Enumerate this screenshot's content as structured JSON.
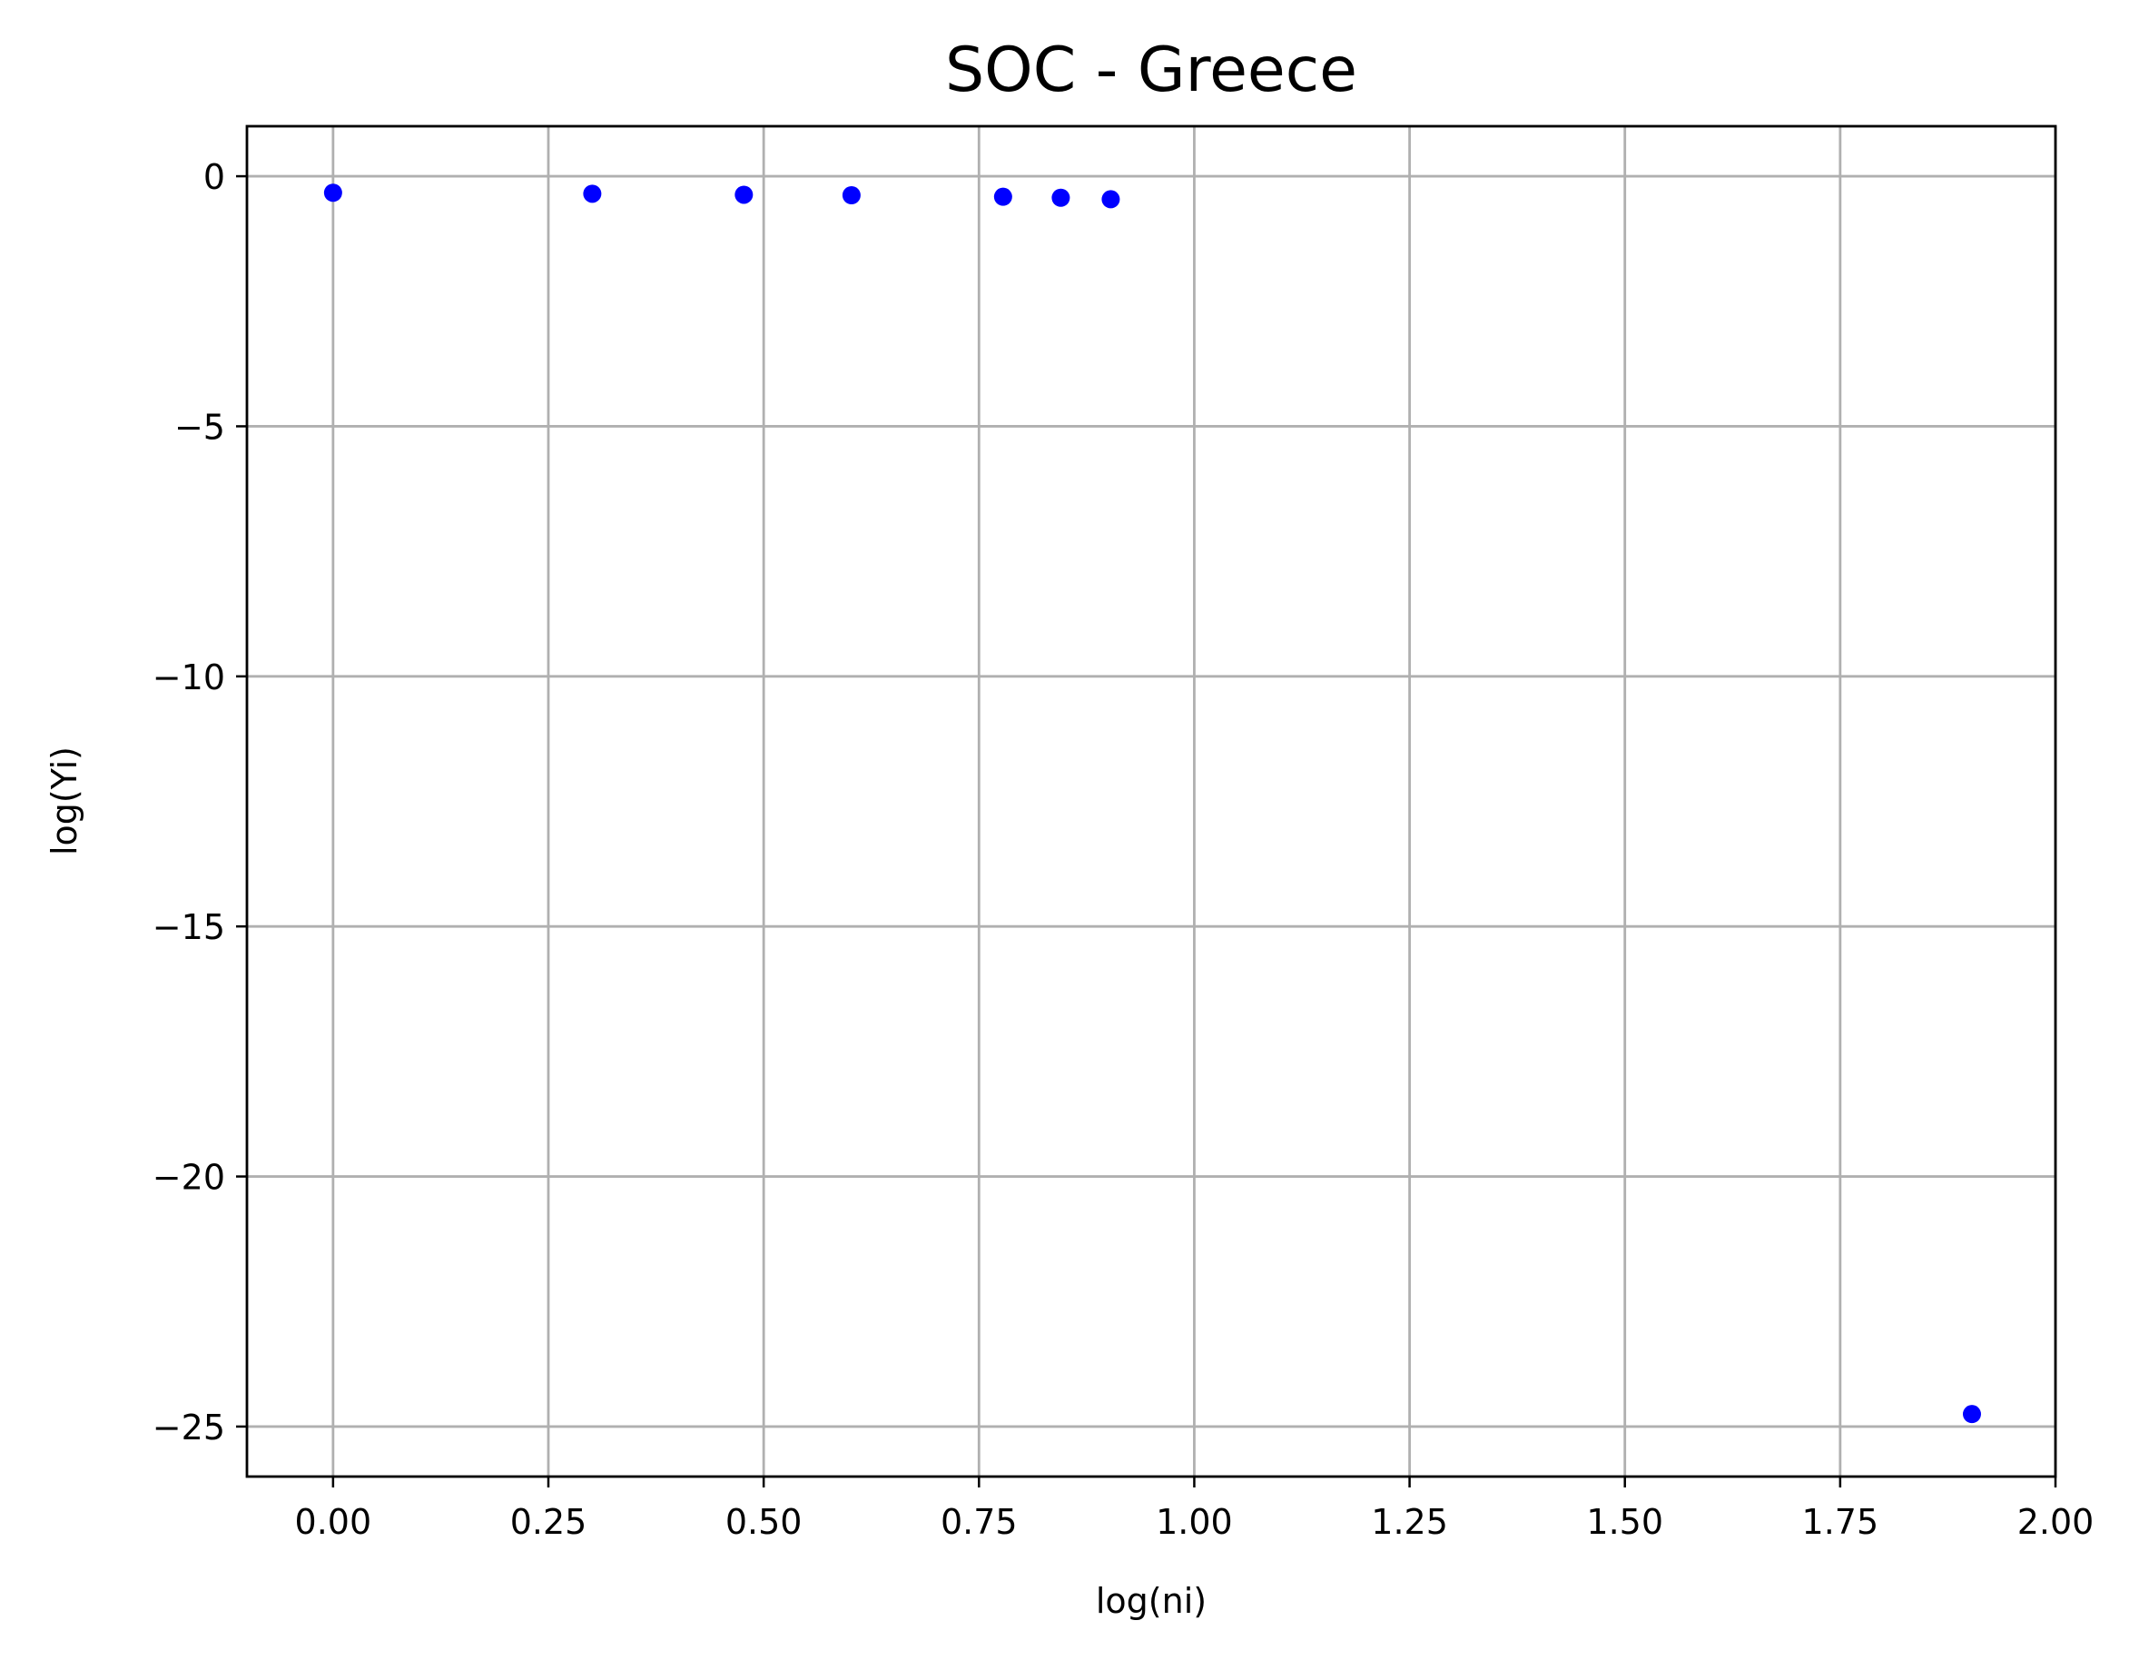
{
  "chart_data": {
    "type": "scatter",
    "title": "SOC - Greece",
    "xlabel": "log(ni)",
    "ylabel": "log(Yi)",
    "xlim": [
      -0.1,
      2.0
    ],
    "ylim": [
      -26,
      1
    ],
    "x_ticks": [
      0.0,
      0.25,
      0.5,
      0.75,
      1.0,
      1.25,
      1.5,
      1.75,
      2.0
    ],
    "x_tick_labels": [
      "0.00",
      "0.25",
      "0.50",
      "0.75",
      "1.00",
      "1.25",
      "1.50",
      "1.75",
      "2.00"
    ],
    "y_ticks": [
      0,
      -5,
      -10,
      -15,
      -20,
      -25
    ],
    "y_tick_labels": [
      "0",
      "−5",
      "−10",
      "−15",
      "−20",
      "−25"
    ],
    "grid": true,
    "marker_color": "#0000ff",
    "series": [
      {
        "x": [
          0.0,
          0.301,
          0.477,
          0.602,
          0.778,
          0.845,
          0.903,
          1.903
        ],
        "y": [
          -0.33,
          -0.35,
          -0.37,
          -0.38,
          -0.41,
          -0.43,
          -0.46,
          -24.75
        ]
      }
    ]
  }
}
